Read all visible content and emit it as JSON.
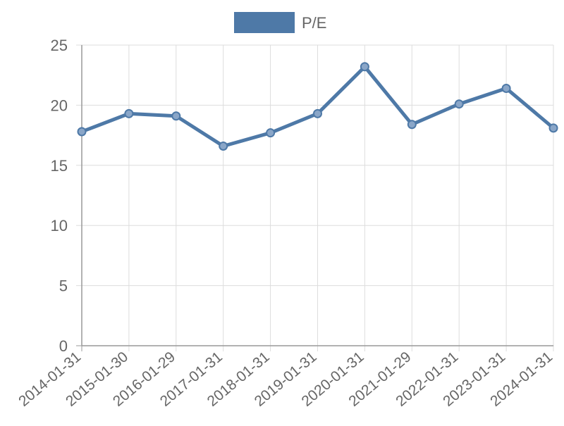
{
  "chart_data": {
    "type": "line",
    "title": "",
    "xlabel": "",
    "ylabel": "",
    "categories": [
      "2014-01-31",
      "2015-01-30",
      "2016-01-29",
      "2017-01-31",
      "2018-01-31",
      "2019-01-31",
      "2020-01-31",
      "2021-01-29",
      "2022-01-31",
      "2023-01-31",
      "2024-01-31"
    ],
    "series": [
      {
        "name": "P/E",
        "values": [
          17.8,
          19.3,
          19.1,
          16.6,
          17.7,
          19.3,
          23.2,
          18.4,
          20.1,
          21.4,
          18.1
        ],
        "color": "#4e79a7"
      }
    ],
    "ylim": [
      0,
      25
    ],
    "yticks": [
      0,
      5,
      10,
      15,
      20,
      25
    ],
    "grid": true,
    "legend_position": "top-center"
  }
}
